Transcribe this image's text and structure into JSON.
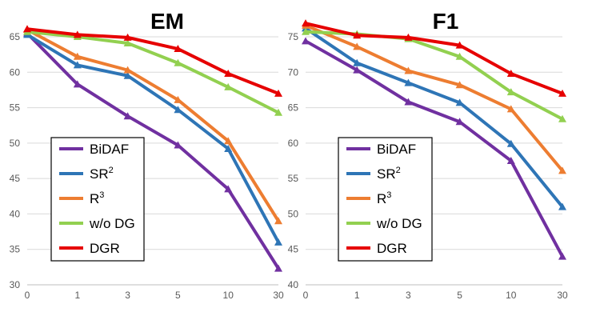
{
  "chart_data": [
    {
      "type": "line",
      "title": "EM",
      "categories": [
        "0",
        "1",
        "3",
        "5",
        "10",
        "30"
      ],
      "ylim": [
        30,
        65
      ],
      "yticks": [
        30,
        35,
        40,
        45,
        50,
        55,
        60,
        65
      ],
      "ytick_labels": [
        "30",
        "35",
        "40",
        "45",
        "50",
        "55",
        "60",
        "65"
      ],
      "grid": true,
      "legend_position": "bottom-left",
      "series": [
        {
          "name": "BiDAF",
          "color": "#7030a0",
          "values": [
            65.5,
            58.3,
            53.8,
            49.7,
            43.5,
            32.3
          ]
        },
        {
          "name": "SR²",
          "color": "#2e75b6",
          "values": [
            65.3,
            61.0,
            59.5,
            54.7,
            49.2,
            36.0
          ]
        },
        {
          "name": "R³",
          "color": "#ed7d31",
          "values": [
            66.0,
            62.2,
            60.3,
            56.1,
            50.3,
            39.0
          ]
        },
        {
          "name": "w/o DG",
          "color": "#92d050",
          "values": [
            65.7,
            65.0,
            64.1,
            61.3,
            57.9,
            54.3
          ]
        },
        {
          "name": "DGR",
          "color": "#e60000",
          "values": [
            66.1,
            65.3,
            64.9,
            63.3,
            59.8,
            57.0
          ]
        }
      ]
    },
    {
      "type": "line",
      "title": "F1",
      "categories": [
        "0",
        "1",
        "3",
        "5",
        "10",
        "30"
      ],
      "ylim": [
        40,
        75
      ],
      "yticks": [
        40,
        45,
        50,
        55,
        60,
        65,
        70,
        75
      ],
      "ytick_labels": [
        "40",
        "45",
        "50",
        "55",
        "60",
        "65",
        "70",
        "75"
      ],
      "grid": true,
      "legend_position": "bottom-left",
      "series": [
        {
          "name": "BiDAF",
          "color": "#7030a0",
          "values": [
            74.4,
            70.3,
            65.8,
            63.0,
            57.5,
            44.0
          ]
        },
        {
          "name": "SR²",
          "color": "#2e75b6",
          "values": [
            76.2,
            71.3,
            68.5,
            65.7,
            59.9,
            51.0
          ]
        },
        {
          "name": "R³",
          "color": "#ed7d31",
          "values": [
            76.6,
            73.6,
            70.2,
            68.2,
            64.8,
            56.1
          ]
        },
        {
          "name": "w/o DG",
          "color": "#92d050",
          "values": [
            75.7,
            75.4,
            74.7,
            72.2,
            67.2,
            63.4
          ]
        },
        {
          "name": "DGR",
          "color": "#e60000",
          "values": [
            76.9,
            75.2,
            74.9,
            73.8,
            69.8,
            67.0
          ]
        }
      ]
    }
  ]
}
